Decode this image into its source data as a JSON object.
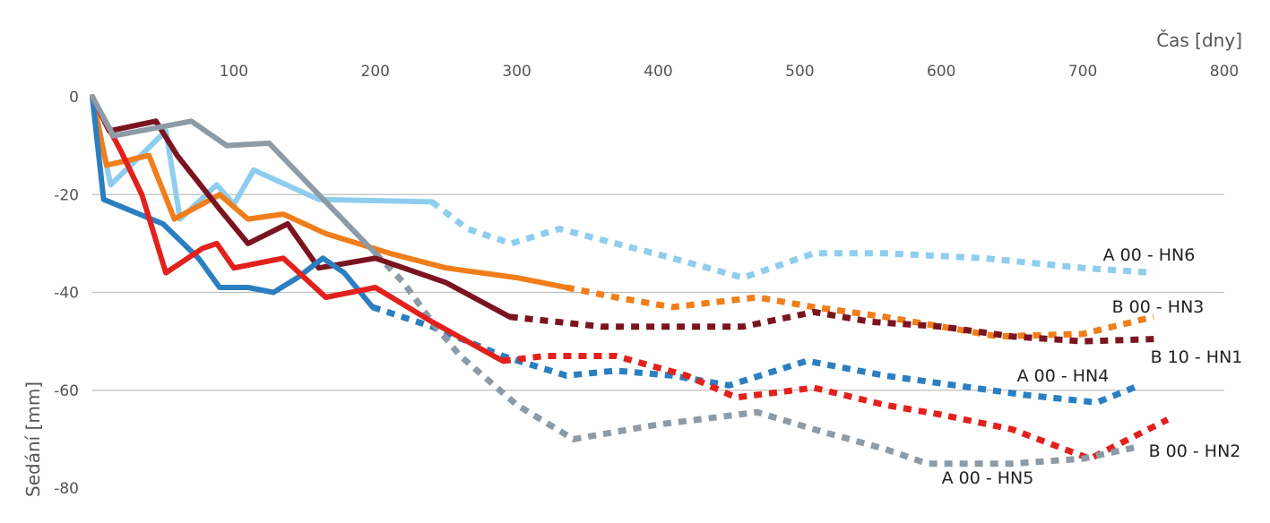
{
  "chart_data": {
    "type": "line",
    "xlabel": "Čas [dny]",
    "ylabel": "Sedání [mm]",
    "xlim": [
      0,
      800
    ],
    "ylim": [
      -80,
      0
    ],
    "x_ticks": [
      "100",
      "200",
      "300",
      "400",
      "500",
      "600",
      "700",
      "800"
    ],
    "y_ticks": [
      "0",
      "-20",
      "-40",
      "-60",
      "-80"
    ],
    "grid": "horizontal",
    "x_axis_position": "top",
    "series": [
      {
        "name": "A 00 - HN6",
        "color": "#8fcdef",
        "measured": [
          [
            0,
            0
          ],
          [
            13,
            -18
          ],
          [
            52,
            -7
          ],
          [
            62,
            -25
          ],
          [
            88,
            -18
          ],
          [
            100,
            -22
          ],
          [
            114,
            -15
          ],
          [
            160,
            -21
          ],
          [
            240,
            -21.5
          ]
        ],
        "forecast": [
          [
            240,
            -21.5
          ],
          [
            265,
            -27
          ],
          [
            296,
            -30
          ],
          [
            330,
            -27
          ],
          [
            370,
            -30
          ],
          [
            410,
            -33
          ],
          [
            460,
            -37
          ],
          [
            510,
            -32
          ],
          [
            560,
            -32
          ],
          [
            630,
            -33
          ],
          [
            700,
            -35
          ],
          [
            750,
            -36
          ]
        ]
      },
      {
        "name": "B 00 - HN3",
        "color": "#ef7e1b",
        "measured": [
          [
            0,
            0
          ],
          [
            10,
            -14
          ],
          [
            40,
            -12
          ],
          [
            58,
            -25
          ],
          [
            90,
            -20
          ],
          [
            110,
            -25
          ],
          [
            135,
            -24
          ],
          [
            165,
            -28
          ],
          [
            210,
            -32
          ],
          [
            250,
            -35
          ],
          [
            300,
            -37
          ],
          [
            335,
            -39
          ]
        ],
        "forecast": [
          [
            335,
            -39
          ],
          [
            370,
            -41
          ],
          [
            410,
            -43
          ],
          [
            470,
            -41
          ],
          [
            510,
            -43
          ],
          [
            560,
            -45
          ],
          [
            600,
            -47
          ],
          [
            640,
            -49
          ],
          [
            700,
            -48.5
          ],
          [
            750,
            -45
          ]
        ]
      },
      {
        "name": "B 10 - HN1",
        "color": "#7a1520",
        "measured": [
          [
            0,
            0
          ],
          [
            12,
            -7
          ],
          [
            45,
            -5
          ],
          [
            60,
            -12
          ],
          [
            90,
            -23
          ],
          [
            110,
            -30
          ],
          [
            138,
            -26
          ],
          [
            160,
            -35
          ],
          [
            200,
            -33
          ],
          [
            250,
            -38
          ],
          [
            295,
            -45
          ]
        ],
        "forecast": [
          [
            295,
            -45
          ],
          [
            360,
            -47
          ],
          [
            420,
            -47
          ],
          [
            460,
            -47
          ],
          [
            510,
            -44
          ],
          [
            550,
            -46
          ],
          [
            600,
            -47
          ],
          [
            650,
            -49
          ],
          [
            700,
            -50
          ],
          [
            755,
            -49.5
          ]
        ]
      },
      {
        "name": "A 00 - HN4",
        "color": "#2b7fc0",
        "measured": [
          [
            0,
            0
          ],
          [
            8,
            -21
          ],
          [
            50,
            -26
          ],
          [
            75,
            -33
          ],
          [
            90,
            -39
          ],
          [
            110,
            -39
          ],
          [
            128,
            -40
          ],
          [
            145,
            -37
          ],
          [
            163,
            -33
          ],
          [
            178,
            -36
          ],
          [
            198,
            -43
          ]
        ],
        "forecast": [
          [
            198,
            -43
          ],
          [
            240,
            -47
          ],
          [
            290,
            -53
          ],
          [
            335,
            -57
          ],
          [
            370,
            -56
          ],
          [
            410,
            -57
          ],
          [
            450,
            -59
          ],
          [
            505,
            -54
          ],
          [
            560,
            -57
          ],
          [
            610,
            -59
          ],
          [
            660,
            -61
          ],
          [
            710,
            -62.5
          ],
          [
            740,
            -59
          ]
        ]
      },
      {
        "name": "B 00 - HN2",
        "color": "#e3211c",
        "measured": [
          [
            0,
            0
          ],
          [
            20,
            -11
          ],
          [
            35,
            -20
          ],
          [
            52,
            -36
          ],
          [
            78,
            -31
          ],
          [
            88,
            -30
          ],
          [
            100,
            -35
          ],
          [
            135,
            -33
          ],
          [
            165,
            -41
          ],
          [
            200,
            -39
          ],
          [
            240,
            -46
          ],
          [
            290,
            -54
          ]
        ],
        "forecast": [
          [
            290,
            -54
          ],
          [
            320,
            -53
          ],
          [
            370,
            -53
          ],
          [
            420,
            -57
          ],
          [
            455,
            -61.5
          ],
          [
            510,
            -59.5
          ],
          [
            560,
            -63
          ],
          [
            600,
            -65
          ],
          [
            650,
            -68
          ],
          [
            705,
            -74
          ],
          [
            760,
            -66
          ]
        ]
      },
      {
        "name": "A 00 - HN5",
        "color": "#8d9ba6",
        "measured": [
          [
            0,
            0
          ],
          [
            15,
            -8
          ],
          [
            70,
            -5
          ],
          [
            95,
            -10
          ],
          [
            125,
            -9.5
          ],
          [
            160,
            -20
          ],
          [
            180,
            -26
          ],
          [
            200,
            -32
          ]
        ],
        "forecast": [
          [
            200,
            -32
          ],
          [
            220,
            -38
          ],
          [
            240,
            -46
          ],
          [
            260,
            -53
          ],
          [
            300,
            -63
          ],
          [
            340,
            -70
          ],
          [
            400,
            -67
          ],
          [
            470,
            -64.5
          ],
          [
            510,
            -68
          ],
          [
            560,
            -72
          ],
          [
            590,
            -75
          ],
          [
            650,
            -75
          ],
          [
            700,
            -74
          ],
          [
            740,
            -71.5
          ]
        ]
      }
    ]
  }
}
